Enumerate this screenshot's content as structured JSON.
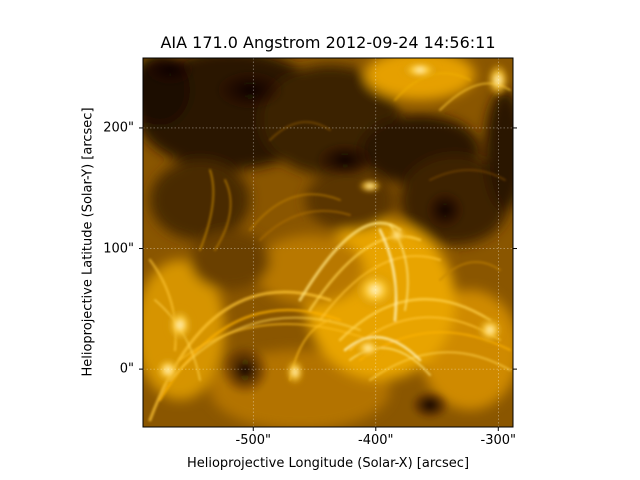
{
  "figure": {
    "title": "AIA 171.0 Angstrom 2012-09-24 14:56:11",
    "xlabel": "Helioprojective Longitude (Solar-X) [arcsec]",
    "ylabel": "Helioprojective Latitude (Solar-Y) [arcsec]"
  },
  "axes": {
    "xlim": [
      -590,
      -288
    ],
    "ylim": [
      -48,
      258
    ],
    "xticks": [
      {
        "value": -500,
        "label": "-500\""
      },
      {
        "value": -400,
        "label": "-400\""
      },
      {
        "value": -300,
        "label": "-300\""
      }
    ],
    "yticks": [
      {
        "value": 0,
        "label": "0\""
      },
      {
        "value": 100,
        "label": "100\""
      },
      {
        "value": 200,
        "label": "200\""
      }
    ],
    "grid": true
  },
  "image": {
    "colormap": [
      "#000000",
      "#3a1f00",
      "#7a4a00",
      "#c38400",
      "#ffb300",
      "#fff0b0"
    ]
  }
}
